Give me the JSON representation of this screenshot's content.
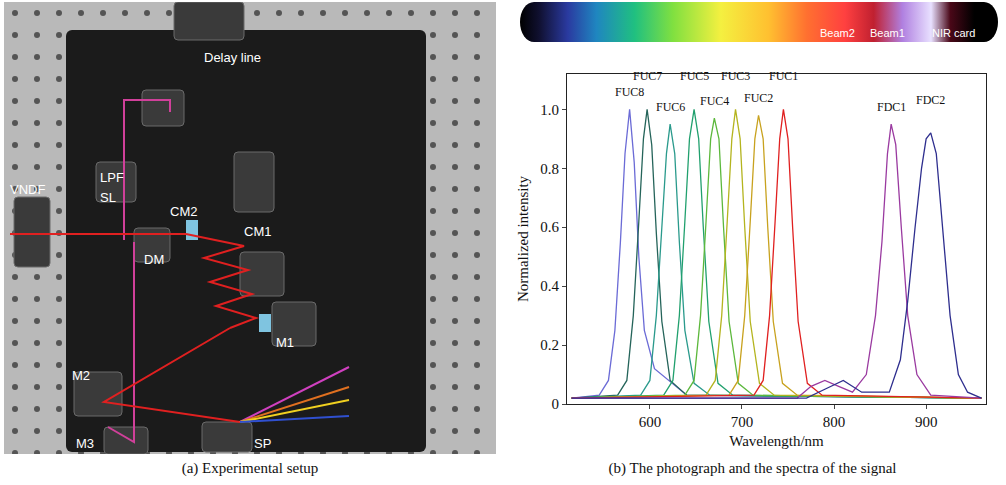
{
  "setup": {
    "caption": "(a) Experimental setup",
    "labels": [
      "Delay line",
      "VNDF",
      "LPF",
      "SL",
      "DM",
      "CM2",
      "CM1",
      "M1",
      "M2",
      "M3",
      "SP"
    ]
  },
  "photo": {
    "labels": [
      "Beam2",
      "Beam1",
      "NIR card"
    ]
  },
  "chart_data": {
    "type": "line",
    "caption": "(b) The photograph and the spectra of the signal",
    "x_label": "Wavelength/nm",
    "y_label": "Normalized intensity",
    "xlim": [
      510,
      965
    ],
    "xticks": [
      600,
      700,
      800,
      900
    ],
    "ylim": [
      0,
      1.12
    ],
    "yticks": [
      0,
      0.2,
      0.4,
      0.6,
      0.8,
      {
        "value": 1,
        "label": "1.0"
      }
    ],
    "grid": false,
    "data_labels": true,
    "series": [
      {
        "name": "FUC8",
        "color": "#6b6bd6",
        "x": [
          515,
          545,
          555,
          562,
          568,
          573,
          578,
          583,
          588,
          594,
          605,
          620,
          640,
          960
        ],
        "values": [
          0.02,
          0.03,
          0.08,
          0.25,
          0.55,
          0.85,
          1.0,
          0.82,
          0.5,
          0.25,
          0.12,
          0.08,
          0.03,
          0.02
        ]
      },
      {
        "name": "FUC7",
        "color": "#25645a",
        "x": [
          515,
          565,
          575,
          582,
          588,
          593,
          597,
          602,
          607,
          613,
          622,
          640,
          960
        ],
        "values": [
          0.02,
          0.03,
          0.08,
          0.3,
          0.62,
          0.9,
          1.0,
          0.88,
          0.58,
          0.28,
          0.08,
          0.03,
          0.02
        ]
      },
      {
        "name": "FUC6",
        "color": "#2a9a8c",
        "x": [
          515,
          590,
          600,
          607,
          613,
          618,
          622,
          627,
          632,
          638,
          648,
          665,
          960
        ],
        "values": [
          0.02,
          0.03,
          0.08,
          0.3,
          0.6,
          0.85,
          0.95,
          0.85,
          0.55,
          0.25,
          0.07,
          0.03,
          0.02
        ]
      },
      {
        "name": "FUC5",
        "color": "#21a06e",
        "x": [
          515,
          615,
          625,
          632,
          638,
          643,
          648,
          653,
          658,
          664,
          674,
          690,
          960
        ],
        "values": [
          0.02,
          0.03,
          0.08,
          0.3,
          0.62,
          0.9,
          1.0,
          0.9,
          0.6,
          0.28,
          0.07,
          0.03,
          0.02
        ]
      },
      {
        "name": "FUC4",
        "color": "#5cb83c",
        "x": [
          515,
          638,
          648,
          655,
          661,
          666,
          670,
          675,
          680,
          686,
          696,
          712,
          960
        ],
        "values": [
          0.02,
          0.03,
          0.08,
          0.3,
          0.62,
          0.9,
          0.97,
          0.9,
          0.6,
          0.28,
          0.07,
          0.03,
          0.02
        ]
      },
      {
        "name": "FUC3",
        "color": "#b4b41e",
        "x": [
          515,
          661,
          671,
          678,
          684,
          689,
          693,
          698,
          703,
          709,
          719,
          735,
          960
        ],
        "values": [
          0.02,
          0.03,
          0.08,
          0.3,
          0.62,
          0.9,
          1.0,
          0.9,
          0.6,
          0.28,
          0.07,
          0.03,
          0.02
        ]
      },
      {
        "name": "FUC2",
        "color": "#c8a21e",
        "x": [
          515,
          686,
          696,
          703,
          709,
          714,
          718,
          723,
          728,
          734,
          744,
          760,
          960
        ],
        "values": [
          0.02,
          0.03,
          0.08,
          0.3,
          0.62,
          0.9,
          0.98,
          0.9,
          0.6,
          0.28,
          0.07,
          0.03,
          0.02
        ]
      },
      {
        "name": "FUC1",
        "color": "#e02020",
        "x": [
          515,
          713,
          723,
          730,
          736,
          741,
          745,
          750,
          755,
          761,
          771,
          787,
          960
        ],
        "values": [
          0.02,
          0.03,
          0.08,
          0.3,
          0.62,
          0.9,
          1.0,
          0.9,
          0.6,
          0.28,
          0.07,
          0.03,
          0.02
        ]
      },
      {
        "name": "FDC1",
        "color": "#9a3aa0",
        "x": [
          515,
          760,
          775,
          790,
          805,
          820,
          835,
          845,
          852,
          858,
          862,
          867,
          873,
          880,
          890,
          905,
          960
        ],
        "values": [
          0.02,
          0.02,
          0.06,
          0.08,
          0.06,
          0.04,
          0.1,
          0.3,
          0.55,
          0.85,
          0.95,
          0.88,
          0.6,
          0.3,
          0.1,
          0.03,
          0.02
        ]
      },
      {
        "name": "FDC2",
        "color": "#2e2e8e",
        "x": [
          515,
          770,
          790,
          810,
          830,
          860,
          872,
          880,
          888,
          895,
          900,
          905,
          911,
          918,
          926,
          935,
          945,
          960
        ],
        "values": [
          0.02,
          0.02,
          0.05,
          0.08,
          0.04,
          0.04,
          0.15,
          0.35,
          0.6,
          0.8,
          0.9,
          0.92,
          0.85,
          0.6,
          0.3,
          0.1,
          0.04,
          0.02
        ]
      }
    ]
  }
}
